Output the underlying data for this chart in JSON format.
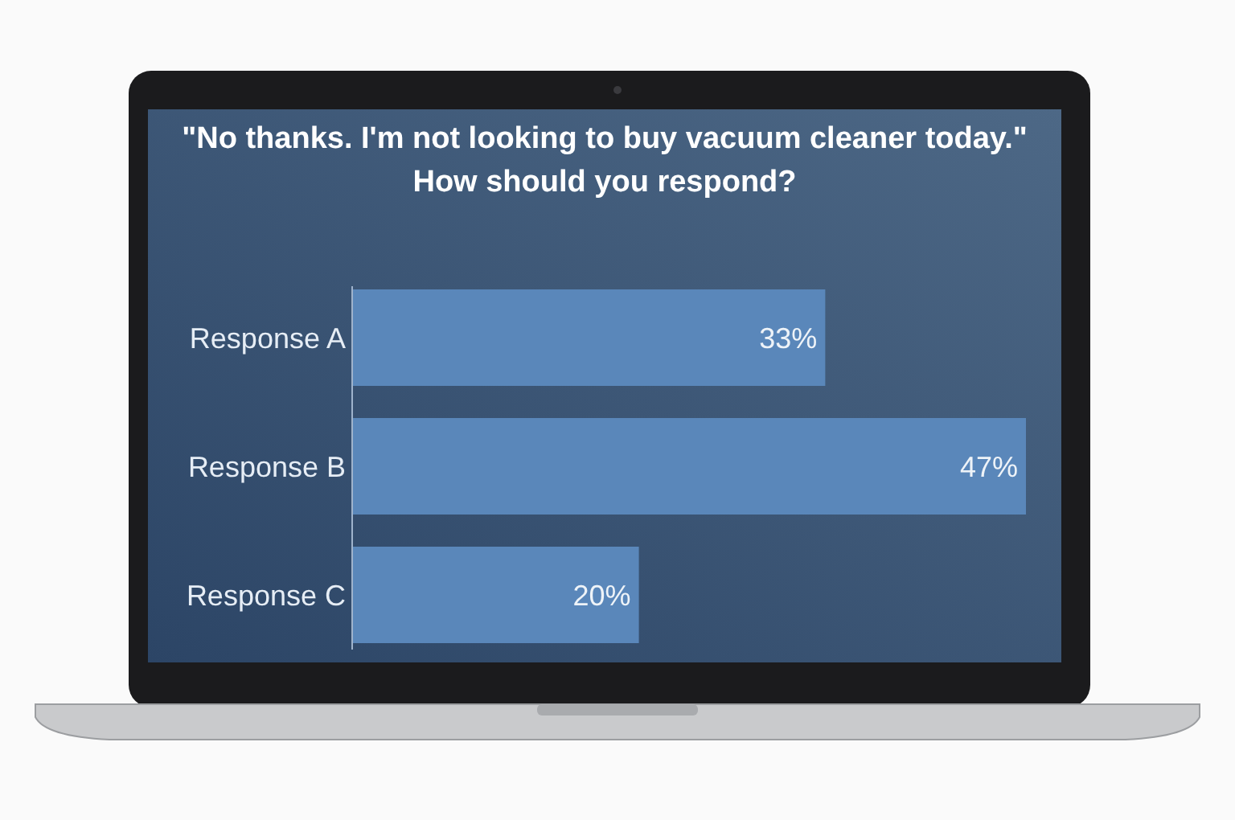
{
  "chart_data": {
    "type": "bar",
    "orientation": "horizontal",
    "title": "\"No thanks. I'm not looking to buy vacuum cleaner today.\" How should you respond?",
    "categories": [
      "Response A",
      "Response B",
      "Response C"
    ],
    "values": [
      33,
      47,
      20
    ],
    "value_labels": [
      "33%",
      "47%",
      "20%"
    ],
    "color": "#5a87ba"
  }
}
